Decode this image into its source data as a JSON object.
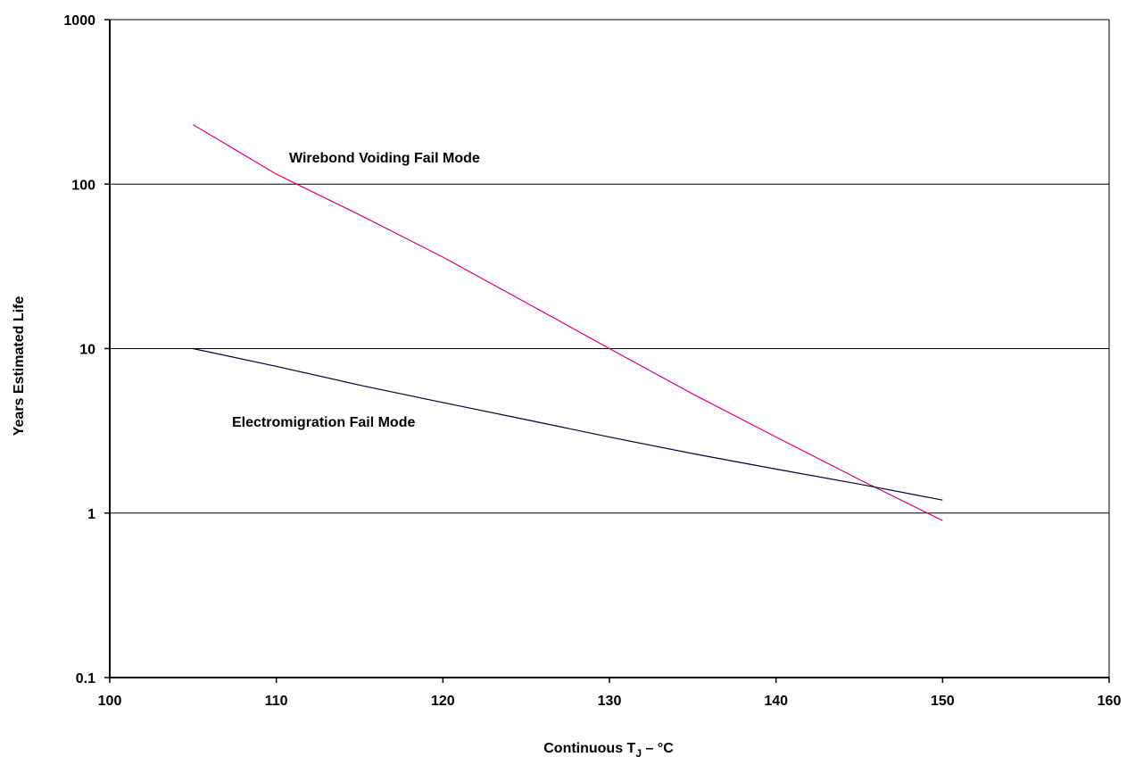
{
  "chart_data": {
    "type": "line",
    "xlabel_main": "Continuous T",
    "xlabel_sub": "J",
    "xlabel_unit": " – °C",
    "ylabel": "Years Estimated Life",
    "xlim": [
      100,
      160
    ],
    "ylim": [
      0.1,
      1000
    ],
    "y_scale": "log",
    "x_ticks": [
      100,
      110,
      120,
      130,
      140,
      150,
      160
    ],
    "x_tick_labels": [
      "100",
      "110",
      "120",
      "130",
      "140",
      "150",
      "160"
    ],
    "y_ticks": [
      0.1,
      1,
      10,
      100,
      1000
    ],
    "y_tick_labels": [
      "0.1",
      "1",
      "10",
      "100",
      "1000"
    ],
    "grid": "horizontal",
    "legend": "none",
    "series": [
      {
        "name": "Wirebond Voiding Fail Mode",
        "color": "#e0007a",
        "x": [
          105,
          110,
          115,
          120,
          125,
          130,
          135,
          140,
          145,
          150
        ],
        "y": [
          230,
          115,
          65,
          36,
          19,
          10,
          5.3,
          2.9,
          1.6,
          0.9
        ]
      },
      {
        "name": "Electromigration Fail Mode",
        "color": "#000033",
        "x": [
          105,
          110,
          115,
          120,
          125,
          130,
          135,
          140,
          145,
          150
        ],
        "y": [
          10,
          7.8,
          6.0,
          4.7,
          3.7,
          2.9,
          2.3,
          1.85,
          1.5,
          1.2
        ]
      }
    ]
  }
}
